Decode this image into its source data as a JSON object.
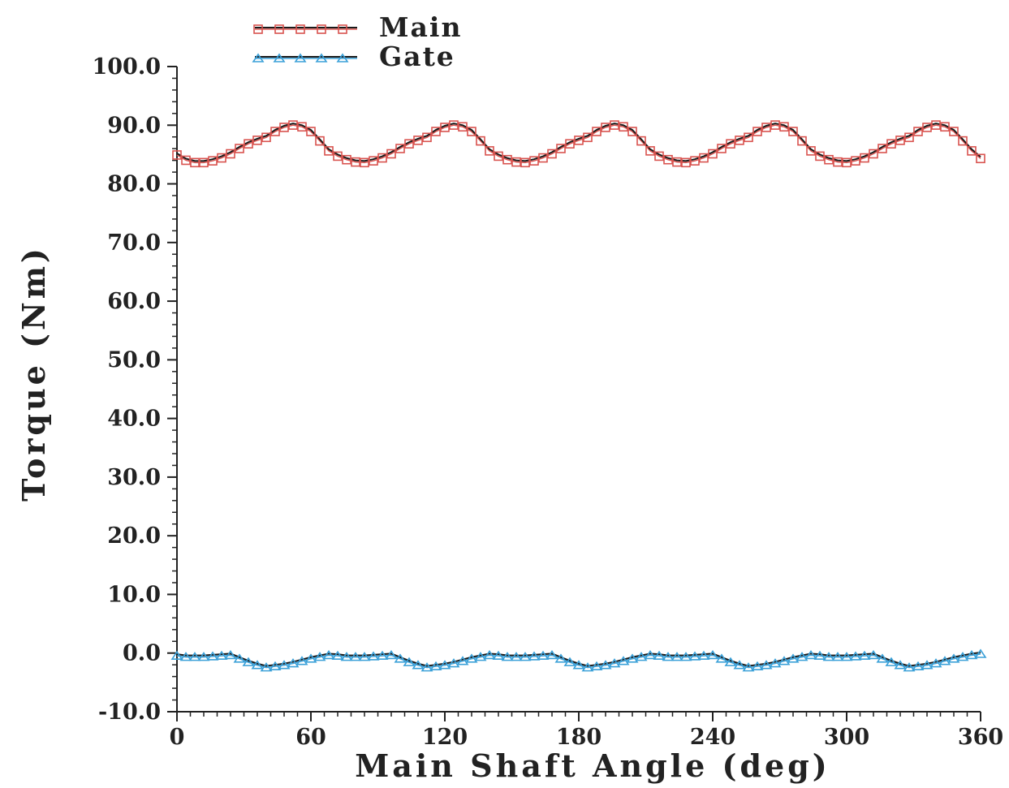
{
  "chart_data": {
    "type": "line",
    "title": "",
    "xlabel": "Main Shaft Angle (deg)",
    "ylabel": "Torque (Nm)",
    "xlim": [
      0,
      360
    ],
    "ylim": [
      -10,
      100
    ],
    "x_ticks": [
      0,
      60,
      120,
      180,
      240,
      300,
      360
    ],
    "x_tick_labels": [
      "0",
      "60",
      "120",
      "180",
      "240",
      "300",
      "360"
    ],
    "y_ticks": [
      -10,
      0,
      10,
      20,
      30,
      40,
      50,
      60,
      70,
      80,
      90,
      100
    ],
    "y_tick_labels": [
      "-10.0",
      "0.0",
      "10.0",
      "20.0",
      "30.0",
      "40.0",
      "50.0",
      "60.0",
      "70.0",
      "80.0",
      "90.0",
      "100.0"
    ],
    "grid": false,
    "legend_position": "top-left",
    "series": [
      {
        "name": "Main",
        "line_color": "#1a1a1a",
        "marker_color": "#d9534f",
        "marker": "square",
        "x": [
          0,
          4,
          8,
          12,
          16,
          20,
          24,
          28,
          32,
          36,
          40,
          44,
          48,
          52,
          56,
          60,
          64,
          68,
          72,
          76,
          80,
          84,
          88,
          92,
          96,
          100,
          104,
          108,
          112,
          116,
          120,
          124,
          128,
          132,
          136,
          140,
          144,
          148,
          152,
          156,
          160,
          164,
          168,
          172,
          176,
          180,
          184,
          188,
          192,
          196,
          200,
          204,
          208,
          212,
          216,
          220,
          224,
          228,
          232,
          236,
          240,
          244,
          248,
          252,
          256,
          260,
          264,
          268,
          272,
          276,
          280,
          284,
          288,
          292,
          296,
          300,
          304,
          308,
          312,
          316,
          320,
          324,
          328,
          332,
          336,
          340,
          344,
          348,
          352,
          356,
          360
        ],
        "values": [
          85.2,
          84.3,
          83.9,
          83.9,
          84.2,
          84.7,
          85.4,
          86.3,
          87.1,
          87.7,
          88.2,
          89.2,
          89.9,
          90.3,
          90.0,
          89.2,
          87.6,
          85.9,
          85.0,
          84.4,
          84.0,
          83.9,
          84.2,
          84.7,
          85.4,
          86.3,
          87.1,
          87.7,
          88.2,
          89.2,
          89.9,
          90.3,
          90.0,
          89.2,
          87.6,
          85.9,
          85.0,
          84.4,
          84.0,
          83.9,
          84.2,
          84.7,
          85.4,
          86.3,
          87.1,
          87.7,
          88.2,
          89.2,
          89.9,
          90.3,
          90.0,
          89.2,
          87.6,
          85.9,
          85.0,
          84.4,
          84.0,
          83.9,
          84.2,
          84.7,
          85.4,
          86.3,
          87.1,
          87.7,
          88.2,
          89.2,
          89.9,
          90.3,
          90.0,
          89.2,
          87.6,
          85.9,
          85.0,
          84.4,
          84.0,
          83.9,
          84.2,
          84.7,
          85.4,
          86.3,
          87.1,
          87.7,
          88.2,
          89.2,
          89.9,
          90.3,
          90.0,
          89.2,
          87.6,
          85.9,
          84.6
        ]
      },
      {
        "name": "Gate",
        "line_color": "#1a1a1a",
        "marker_color": "#3aa0d8",
        "marker": "triangle",
        "x": [
          0,
          4,
          8,
          12,
          16,
          20,
          24,
          28,
          32,
          36,
          40,
          44,
          48,
          52,
          56,
          60,
          64,
          68,
          72,
          76,
          80,
          84,
          88,
          92,
          96,
          100,
          104,
          108,
          112,
          116,
          120,
          124,
          128,
          132,
          136,
          140,
          144,
          148,
          152,
          156,
          160,
          164,
          168,
          172,
          176,
          180,
          184,
          188,
          192,
          196,
          200,
          204,
          208,
          212,
          216,
          220,
          224,
          228,
          232,
          236,
          240,
          244,
          248,
          252,
          256,
          260,
          264,
          268,
          272,
          276,
          280,
          284,
          288,
          292,
          296,
          300,
          304,
          308,
          312,
          316,
          320,
          324,
          328,
          332,
          336,
          340,
          344,
          348,
          352,
          356,
          360
        ],
        "values": [
          -0.2,
          -0.4,
          -0.4,
          -0.4,
          -0.3,
          -0.2,
          -0.1,
          -0.7,
          -1.3,
          -1.8,
          -2.2,
          -2.0,
          -1.8,
          -1.5,
          -1.1,
          -0.7,
          -0.4,
          -0.1,
          -0.2,
          -0.4,
          -0.4,
          -0.4,
          -0.3,
          -0.2,
          -0.1,
          -0.7,
          -1.3,
          -1.8,
          -2.2,
          -2.0,
          -1.8,
          -1.5,
          -1.1,
          -0.7,
          -0.4,
          -0.1,
          -0.2,
          -0.4,
          -0.4,
          -0.4,
          -0.3,
          -0.2,
          -0.1,
          -0.7,
          -1.3,
          -1.8,
          -2.2,
          -2.0,
          -1.8,
          -1.5,
          -1.1,
          -0.7,
          -0.4,
          -0.1,
          -0.2,
          -0.4,
          -0.4,
          -0.4,
          -0.3,
          -0.2,
          -0.1,
          -0.7,
          -1.3,
          -1.8,
          -2.2,
          -2.0,
          -1.8,
          -1.5,
          -1.1,
          -0.7,
          -0.4,
          -0.1,
          -0.2,
          -0.4,
          -0.4,
          -0.4,
          -0.3,
          -0.2,
          -0.1,
          -0.7,
          -1.3,
          -1.8,
          -2.2,
          -2.0,
          -1.8,
          -1.5,
          -1.1,
          -0.7,
          -0.4,
          -0.1,
          0.1
        ]
      }
    ]
  }
}
